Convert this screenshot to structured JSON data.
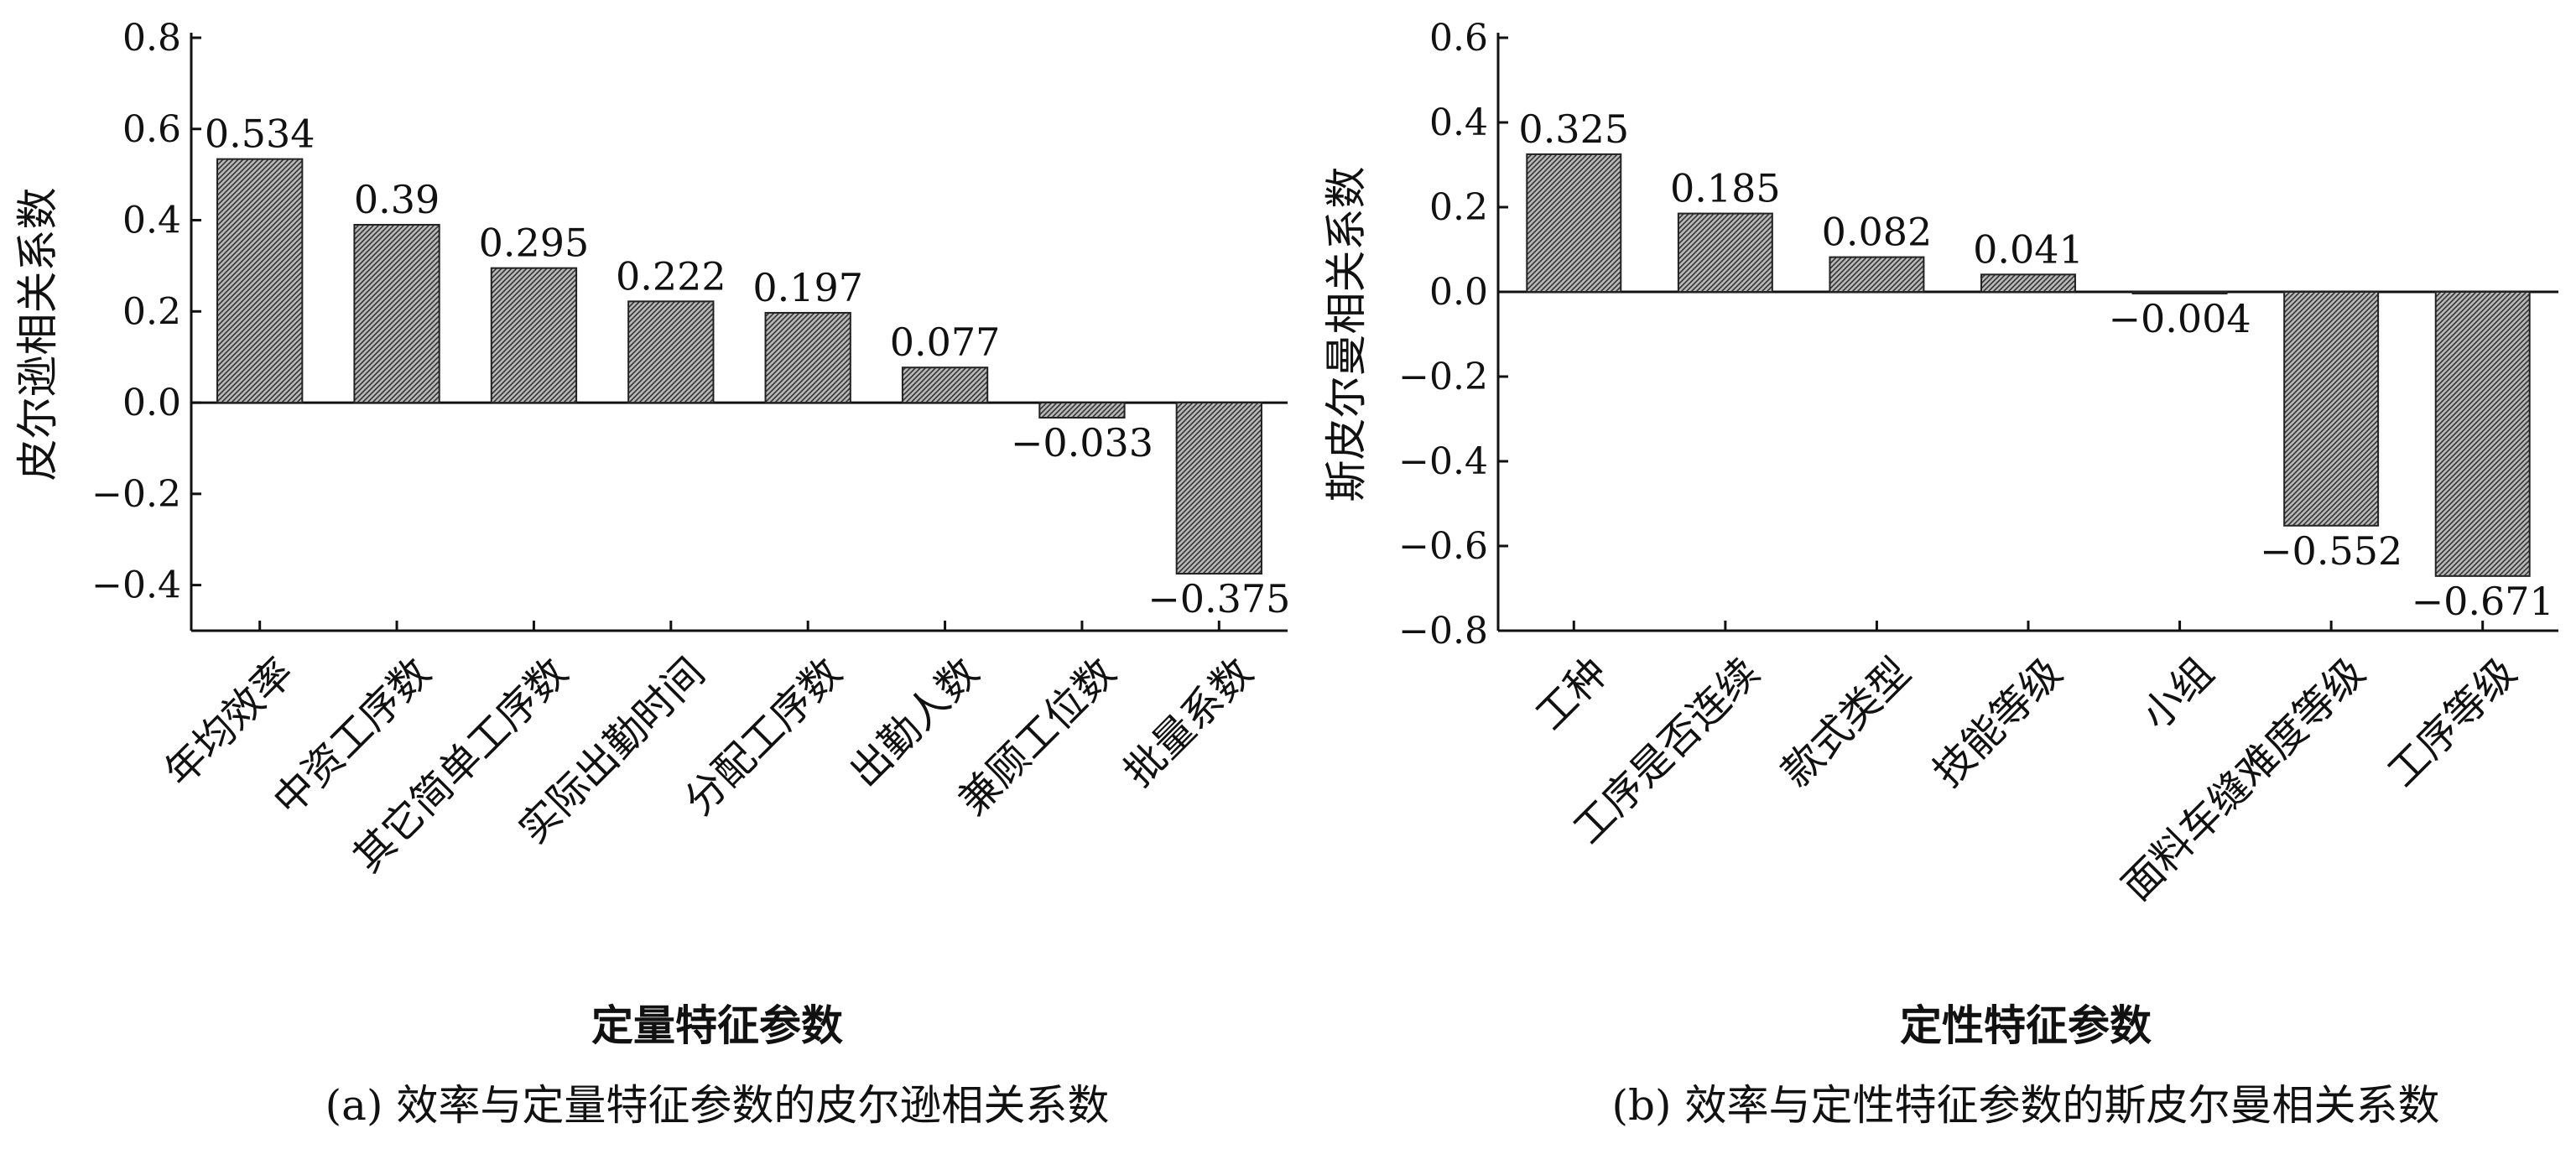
{
  "chart_data": [
    {
      "type": "bar",
      "categories": [
        "年均效率",
        "中资工序数",
        "其它简单工序数",
        "实际出勤时间",
        "分配工序数",
        "出勤人数",
        "兼顾工位数",
        "批量系数"
      ],
      "values": [
        0.534,
        0.39,
        0.295,
        0.222,
        0.197,
        0.077,
        -0.033,
        -0.375
      ],
      "data_labels": [
        "0.534",
        "0.39",
        "0.295",
        "0.222",
        "0.197",
        "0.077",
        "−0.033",
        "−0.375"
      ],
      "xlabel": "定量特征参数",
      "ylabel": "皮尔逊相关系数",
      "caption": "(a) 效率与定量特征参数的皮尔逊相关系数",
      "ylim": [
        -0.5,
        0.8
      ],
      "yticks": [
        0.8,
        0.6,
        0.4,
        0.2,
        0.0,
        -0.2,
        -0.4
      ],
      "ytick_labels": [
        "0.8",
        "0.6",
        "0.4",
        "0.2",
        "0.0",
        "−0.2",
        "−0.4"
      ],
      "grid": false,
      "bar_fill": "#8a8a8a"
    },
    {
      "type": "bar",
      "categories": [
        "工种",
        "工序是否连续",
        "款式类型",
        "技能等级",
        "小组",
        "面料车缝难度等级",
        "工序等级"
      ],
      "values": [
        0.325,
        0.185,
        0.082,
        0.041,
        -0.004,
        -0.552,
        -0.671
      ],
      "data_labels": [
        "0.325",
        "0.185",
        "0.082",
        "0.041",
        "−0.004",
        "−0.552",
        "−0.671"
      ],
      "xlabel": "定性特征参数",
      "ylabel": "斯皮尔曼相关系数",
      "caption": "(b) 效率与定性特征参数的斯皮尔曼相关系数",
      "ylim": [
        -0.8,
        0.6
      ],
      "yticks": [
        0.6,
        0.4,
        0.2,
        0.0,
        -0.2,
        -0.4,
        -0.6,
        -0.8
      ],
      "ytick_labels": [
        "0.6",
        "0.4",
        "0.2",
        "0.0",
        "−0.2",
        "−0.4",
        "−0.6",
        "−0.8"
      ],
      "grid": false,
      "bar_fill": "#8a8a8a"
    }
  ]
}
